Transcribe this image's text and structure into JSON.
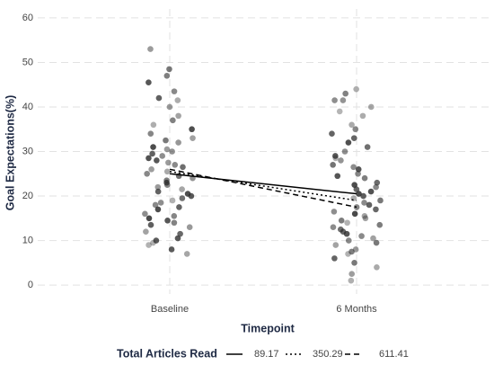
{
  "chart_data": {
    "type": "jitter",
    "x_label": "Timepoint",
    "y_label": "Goal Expectations(%)",
    "categories": [
      "Baseline",
      "6 Months"
    ],
    "ylim": [
      -2,
      62
    ],
    "yticks": [
      0,
      10,
      20,
      30,
      40,
      50,
      60
    ],
    "grid": true,
    "point_color": "#2a2a2a",
    "groups": [
      {
        "values": [
          48.5,
          53,
          47,
          45.5,
          43.5,
          42,
          41.5,
          40,
          38,
          37,
          36,
          35,
          34,
          33,
          32.5,
          32,
          31,
          30.5,
          30,
          29.5,
          29,
          28.5,
          28,
          27.5,
          27,
          26.5,
          26,
          25.5,
          25,
          24.5,
          24,
          23.5,
          23,
          22.5,
          22,
          21.5,
          21,
          20.5,
          20,
          19.5,
          19,
          18.5,
          18,
          17.5,
          17,
          16,
          15.5,
          15,
          14.5,
          14,
          13.5,
          13,
          12,
          11.5,
          10.5,
          10,
          9.5,
          9,
          8,
          7
        ]
      },
      {
        "values": [
          44,
          43,
          41.5,
          41.5,
          40,
          39,
          38,
          36,
          35,
          34,
          33,
          32,
          31,
          30,
          29,
          28.5,
          28,
          27,
          26.5,
          26,
          25,
          24.5,
          24,
          23,
          22.5,
          22,
          21.5,
          21,
          20.5,
          20,
          19.5,
          19,
          18.5,
          18,
          17.5,
          17,
          16.5,
          16,
          15.5,
          15,
          14.5,
          14,
          13.5,
          13,
          12.5,
          12,
          11.5,
          11,
          10.5,
          10,
          9.5,
          9,
          8,
          7.5,
          7,
          6,
          5,
          4,
          2.5,
          1
        ]
      }
    ],
    "legend_title": "Total Articles Read",
    "legend_position": "bottom",
    "series": [
      {
        "name": "89.17",
        "color": "#000000",
        "dash": "solid",
        "values": [
          25,
          20.5
        ]
      },
      {
        "name": "350.29",
        "color": "#000000",
        "dash": "dotted",
        "values": [
          25.5,
          19
        ]
      },
      {
        "name": "611.41",
        "color": "#000000",
        "dash": "dashed",
        "values": [
          26,
          17.5
        ]
      }
    ]
  }
}
